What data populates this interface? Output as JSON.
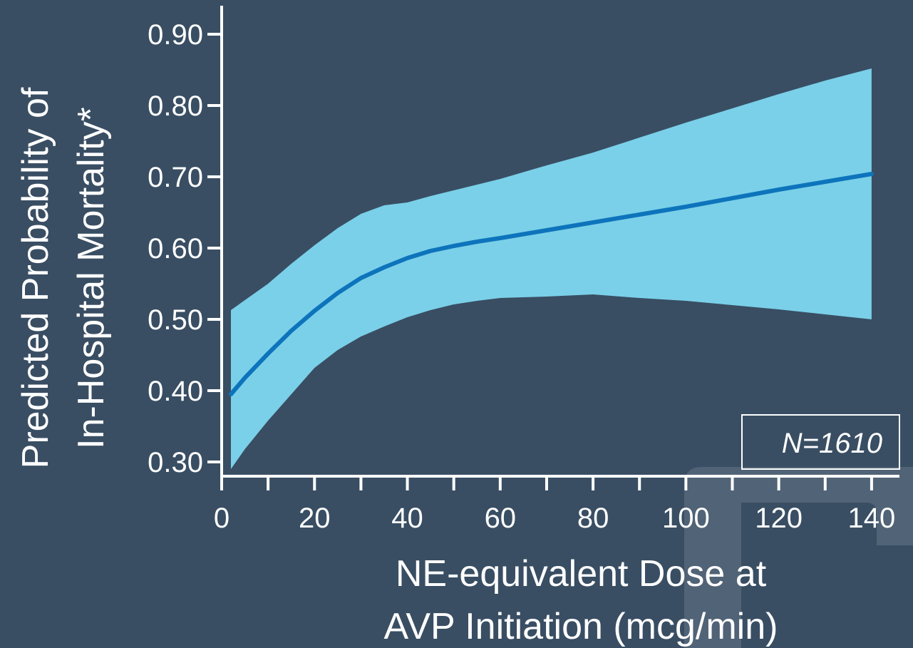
{
  "chart_data": {
    "type": "line",
    "ylabel_lines": [
      "Predicted Probability of",
      "In-Hospital Mortality*"
    ],
    "xlabel_lines": [
      "NE-equivalent Dose at",
      "AVP Initiation (mcg/min)"
    ],
    "annotation": "N=1610",
    "xlim": [
      0,
      146
    ],
    "ylim": [
      0.28,
      0.94
    ],
    "x_ticks": [
      0,
      20,
      40,
      60,
      80,
      100,
      120,
      140
    ],
    "x_tick_labels": [
      "0",
      "20",
      "40",
      "60",
      "80",
      "100",
      "120",
      "140"
    ],
    "x_minor_ticks": [
      10,
      30,
      50,
      70,
      90,
      110,
      130
    ],
    "y_ticks": [
      0.3,
      0.4,
      0.5,
      0.6,
      0.7,
      0.8,
      0.9
    ],
    "y_tick_labels": [
      "0.30",
      "0.40",
      "0.50",
      "0.60",
      "0.70",
      "0.80",
      "0.90"
    ],
    "grid": false,
    "colors": {
      "line": "#0d74bc",
      "band": "#7ad0e8",
      "axis": "#ffffff",
      "background": "#394e63"
    },
    "series": [
      {
        "x": [
          2,
          5,
          10,
          15,
          20,
          25,
          30,
          35,
          40,
          45,
          50,
          55,
          60,
          70,
          80,
          90,
          100,
          110,
          120,
          130,
          140
        ],
        "y": [
          0.395,
          0.418,
          0.452,
          0.484,
          0.512,
          0.537,
          0.558,
          0.573,
          0.586,
          0.596,
          0.603,
          0.609,
          0.614,
          0.625,
          0.636,
          0.647,
          0.658,
          0.67,
          0.682,
          0.693,
          0.704
        ],
        "lower": [
          0.29,
          0.318,
          0.358,
          0.395,
          0.432,
          0.457,
          0.476,
          0.49,
          0.503,
          0.513,
          0.521,
          0.526,
          0.53,
          0.532,
          0.535,
          0.53,
          0.526,
          0.52,
          0.514,
          0.507,
          0.5
        ],
        "upper": [
          0.513,
          0.527,
          0.55,
          0.578,
          0.604,
          0.628,
          0.648,
          0.66,
          0.664,
          0.673,
          0.681,
          0.689,
          0.697,
          0.716,
          0.734,
          0.755,
          0.776,
          0.796,
          0.816,
          0.835,
          0.852
        ]
      }
    ]
  }
}
